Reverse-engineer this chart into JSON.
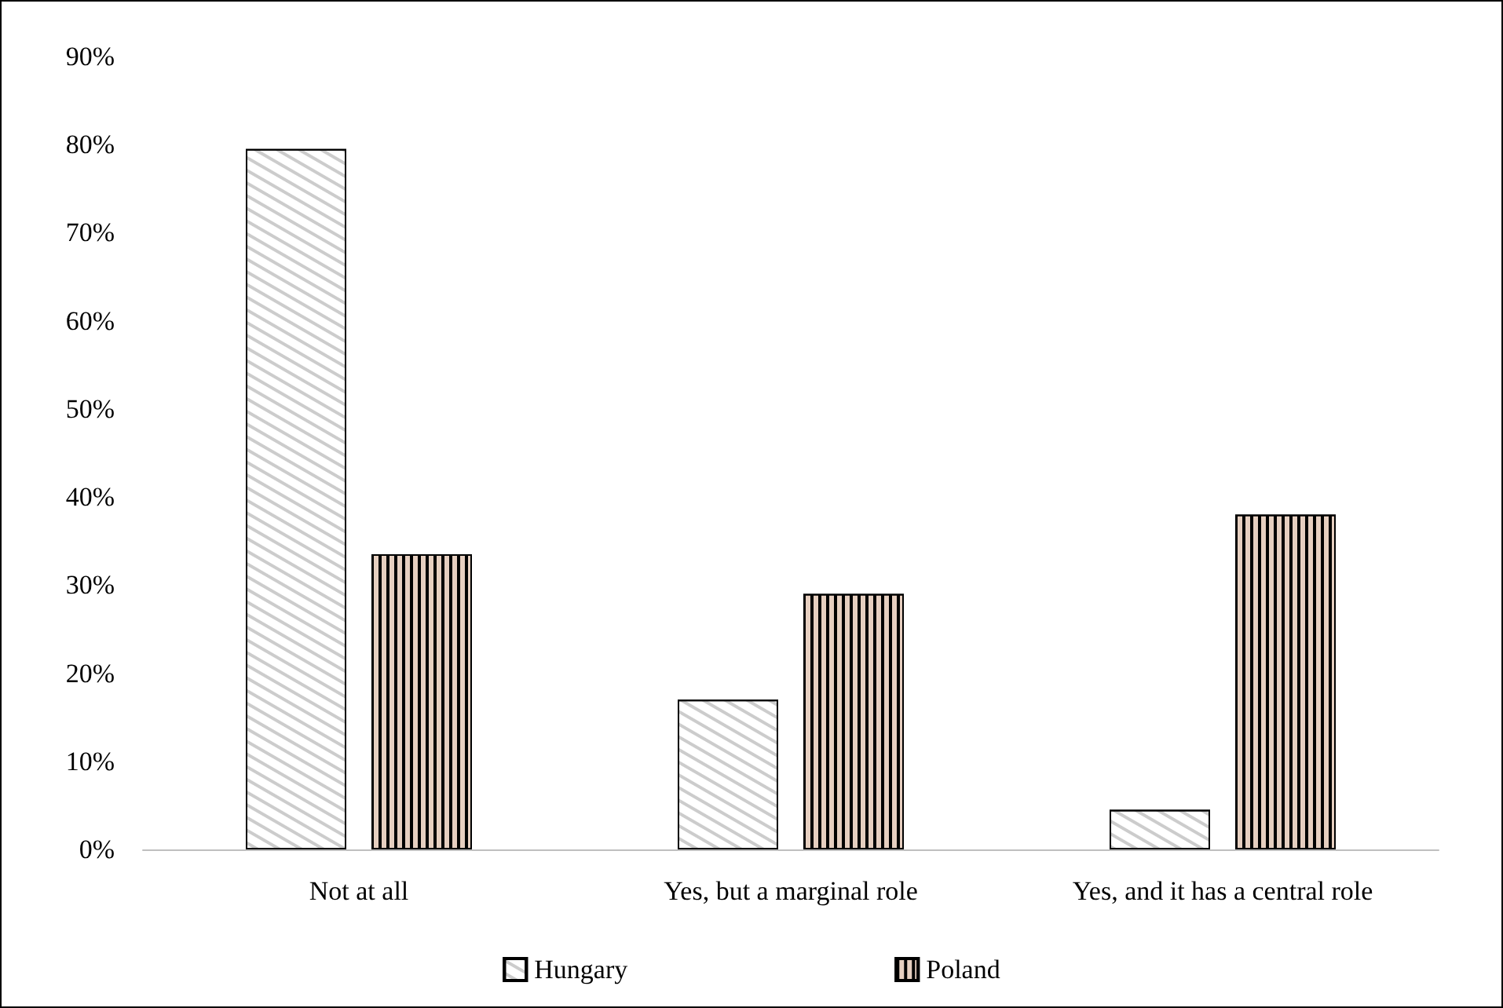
{
  "chart_data": {
    "type": "bar",
    "categories": [
      "Not at all",
      "Yes, but a marginal role",
      "Yes, and it has a central role"
    ],
    "series": [
      {
        "name": "Hungary",
        "color": "#ffffff",
        "values": [
          79.5,
          17,
          4.5
        ]
      },
      {
        "name": "Poland",
        "color": "#e6cfc0",
        "values": [
          33.5,
          29,
          38
        ]
      }
    ],
    "ylim": [
      0,
      90
    ],
    "yticks": [
      {
        "value": 0,
        "label": "0%"
      },
      {
        "value": 10,
        "label": "10%"
      },
      {
        "value": 20,
        "label": "20%"
      },
      {
        "value": 30,
        "label": "30%"
      },
      {
        "value": 40,
        "label": "40%"
      },
      {
        "value": 50,
        "label": "50%"
      },
      {
        "value": 60,
        "label": "60%"
      },
      {
        "value": 70,
        "label": "70%"
      },
      {
        "value": 80,
        "label": "80%"
      },
      {
        "value": 90,
        "label": "90%"
      }
    ],
    "grid": false,
    "legend": "bottom"
  }
}
